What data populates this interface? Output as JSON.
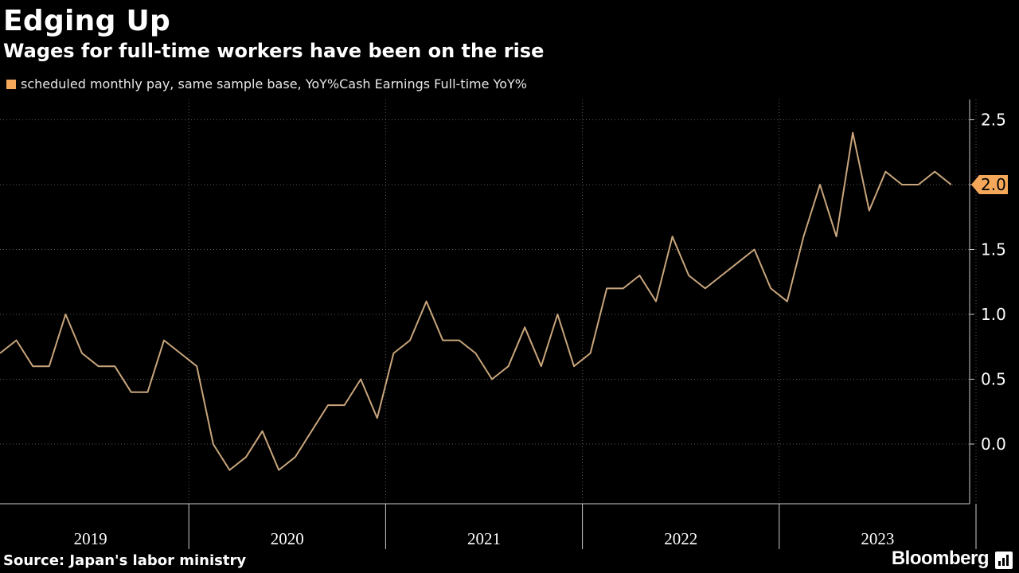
{
  "title": "Edging Up",
  "subtitle": "Wages for full-time workers have been on the rise",
  "source": "Source: Japan's labor ministry",
  "brand": "Bloomberg",
  "colors": {
    "line": "#c8a57c",
    "accent": "#f5a85a",
    "grid": "#5a5a5a",
    "background": "#000000"
  },
  "chart_data": {
    "type": "line",
    "series": [
      {
        "name": "scheduled monthly pay, same sample base, YoY%Cash Earnings Full-time YoY%",
        "start": "2019-01",
        "values": [
          0.7,
          0.8,
          0.6,
          0.6,
          1.0,
          0.7,
          0.6,
          0.6,
          0.4,
          0.4,
          0.8,
          0.7,
          0.6,
          0.0,
          -0.2,
          -0.1,
          0.1,
          -0.2,
          -0.1,
          0.1,
          0.3,
          0.3,
          0.5,
          0.2,
          0.7,
          0.8,
          1.1,
          0.8,
          0.8,
          0.7,
          0.5,
          0.6,
          0.9,
          0.6,
          1.0,
          0.6,
          0.7,
          1.2,
          1.2,
          1.3,
          1.1,
          1.6,
          1.3,
          1.2,
          1.3,
          1.4,
          1.5,
          1.2,
          1.1,
          1.6,
          2.0,
          1.6,
          2.4,
          1.8,
          2.1,
          2.0,
          2.0,
          2.1,
          2.0
        ]
      }
    ],
    "x_labels": [
      "2019",
      "2020",
      "2021",
      "2022",
      "2023"
    ],
    "y_ticks": [
      0.0,
      0.5,
      1.0,
      1.5,
      2.0,
      2.5
    ],
    "y_tick_labels": [
      "0.0",
      "0.5",
      "1.0",
      "1.5",
      "2.0",
      "2.5"
    ],
    "ylim": [
      -0.45,
      2.62
    ],
    "last_value_label": "2.0",
    "grid": true,
    "legend_position": "top-left"
  }
}
